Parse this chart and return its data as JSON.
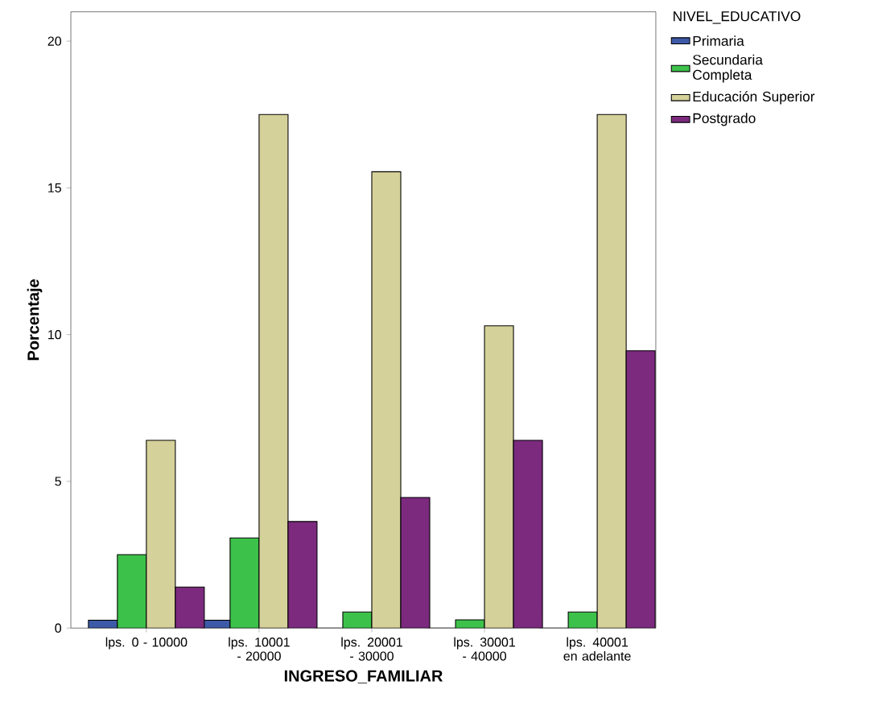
{
  "chart_data": {
    "type": "bar",
    "xlabel": "INGRESO_FAMILIAR",
    "ylabel": "Porcentaje",
    "legend_title": "NIVEL_EDUCATIVO",
    "legend": "top right",
    "grid": false,
    "categories": [
      "lps. 0 - 10000",
      "lps. 10001 - 20000",
      "lps. 20001 - 30000",
      "lps. 30001 - 40000",
      "lps. 40001 en adelante"
    ],
    "ylim": [
      0,
      21
    ],
    "yticks": [
      0,
      5,
      10,
      15,
      20
    ],
    "series": [
      {
        "name": "Primaria",
        "color": "#3d5aa8",
        "values": [
          0.27,
          0.27,
          0,
          0,
          0
        ]
      },
      {
        "name": "Secundaria Completa",
        "color": "#3cc24a",
        "values": [
          2.5,
          3.07,
          0.55,
          0.28,
          0.55
        ]
      },
      {
        "name": "Educación Superior",
        "color": "#d5d19a",
        "values": [
          6.4,
          17.5,
          15.55,
          10.3,
          17.5
        ]
      },
      {
        "name": "Postgrado",
        "color": "#7b2a7e",
        "values": [
          1.4,
          3.63,
          4.45,
          6.4,
          9.45
        ]
      }
    ]
  }
}
